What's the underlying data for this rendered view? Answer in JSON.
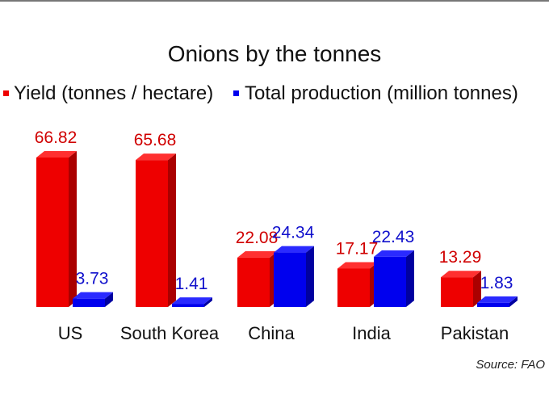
{
  "chart_data": {
    "type": "bar",
    "title": "Onions by the tonnes",
    "source": "Source: FAO",
    "categories": [
      "US",
      "South Korea",
      "China",
      "India",
      "Pakistan"
    ],
    "series": [
      {
        "name": "Yield (tonnes / hectare)",
        "color": "#ee0000",
        "values": [
          66.82,
          65.68,
          22.08,
          17.17,
          13.29
        ],
        "labels": [
          "66.82",
          "65.68",
          "22.08",
          "17.17",
          "13.29"
        ]
      },
      {
        "name": "Total production (million tonnes)",
        "color": "#0000ee",
        "values": [
          3.73,
          1.41,
          24.34,
          22.43,
          1.83
        ],
        "labels": [
          "3.73",
          "1.41",
          "24.34",
          "22.43",
          "1.83"
        ]
      }
    ],
    "style": "3d-columns",
    "legend_position": "top",
    "grid": false
  }
}
